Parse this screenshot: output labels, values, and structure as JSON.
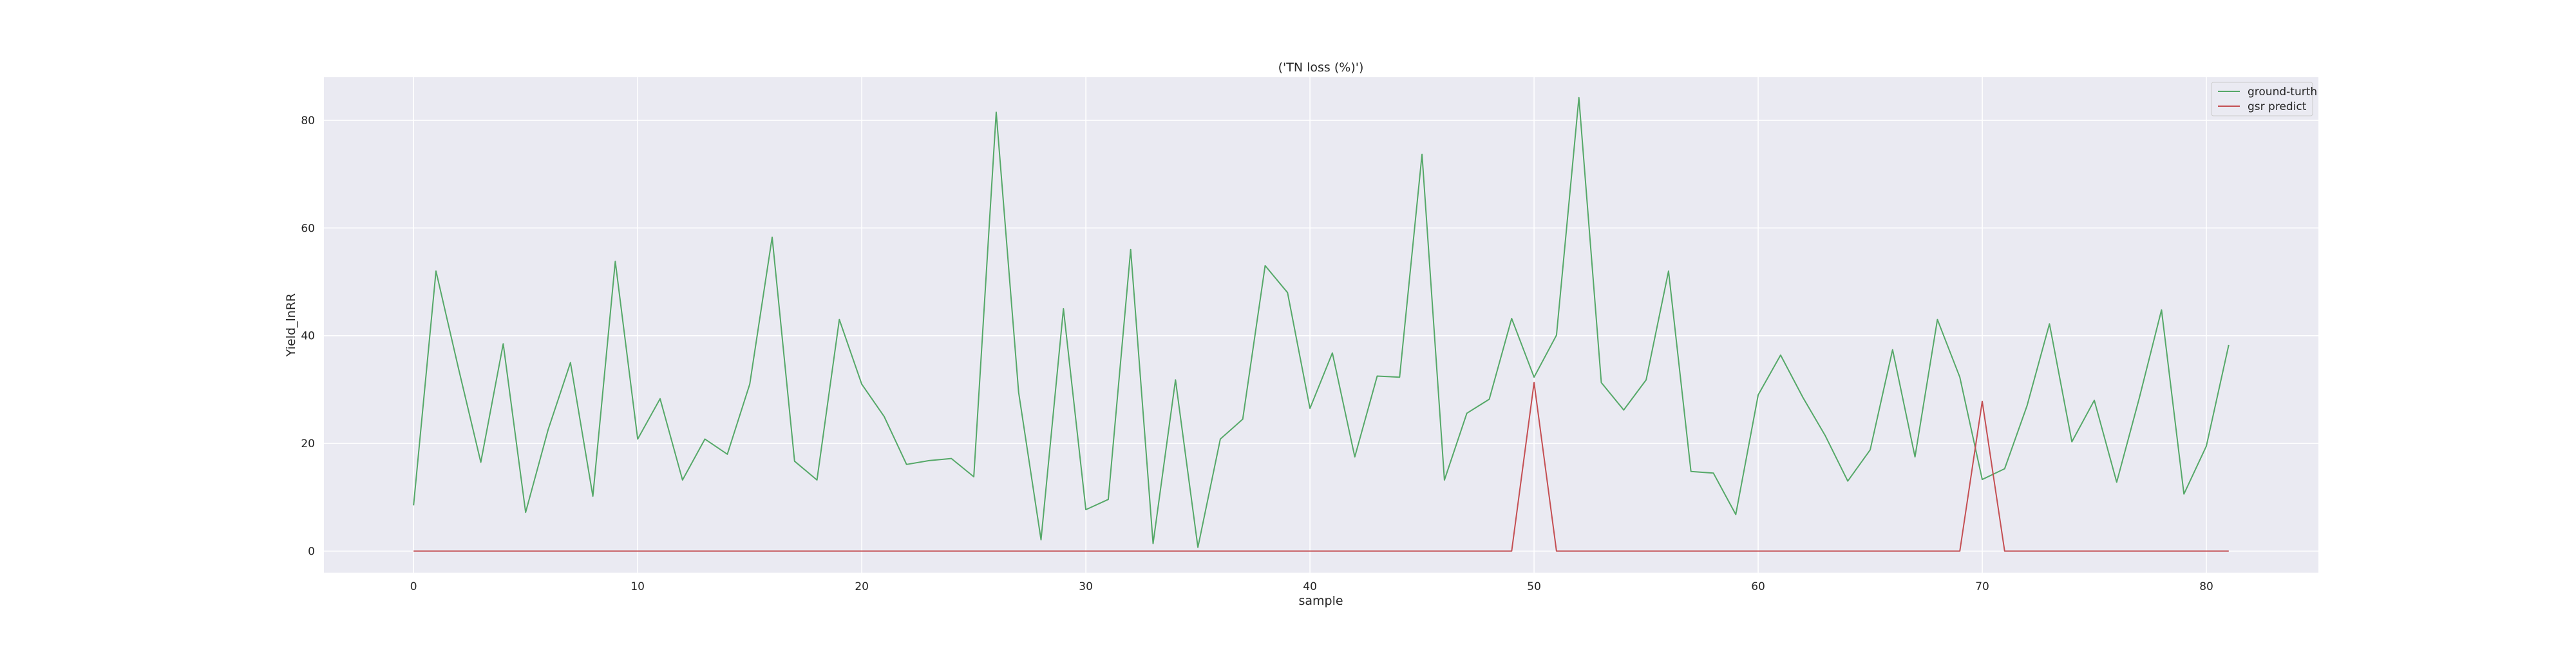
{
  "chart_data": {
    "type": "line",
    "title": "('TN loss (%)')",
    "xlabel": "sample",
    "ylabel": "Yield_lnRR",
    "xlim": [
      -4,
      85
    ],
    "ylim": [
      -4,
      88
    ],
    "xticks": [
      0,
      10,
      20,
      30,
      40,
      50,
      60,
      70,
      80
    ],
    "yticks": [
      0,
      20,
      40,
      60,
      80
    ],
    "xtick_labels": [
      "0",
      "10",
      "20",
      "30",
      "40",
      "50",
      "60",
      "70",
      "80"
    ],
    "ytick_labels": [
      "0",
      "20",
      "40",
      "60",
      "80"
    ],
    "grid": true,
    "legend_position": "top-right",
    "series": [
      {
        "name": "ground-turth",
        "color": "#55a868",
        "values": [
          8.5,
          52,
          34,
          16.5,
          38.5,
          7.2,
          22.5,
          35,
          10.2,
          53.8,
          20.8,
          28.3,
          13.2,
          20.8,
          18,
          31,
          58.3,
          16.7,
          13.2,
          43,
          31,
          25,
          16.1,
          16.8,
          17.2,
          13.8,
          81.5,
          29.5,
          2.1,
          45,
          7.7,
          9.6,
          56,
          1.4,
          31.8,
          0.7,
          20.8,
          24.5,
          53,
          48,
          26.5,
          36.8,
          17.5,
          32.5,
          32.3,
          73.7,
          13.2,
          25.6,
          28.2,
          43.2,
          32.3,
          40.1,
          84.2,
          31.3,
          26.2,
          31.8,
          52,
          14.8,
          14.5,
          6.8,
          29,
          36.4,
          28.5,
          21.4,
          13,
          18.8,
          37.4,
          17.5,
          43,
          32.3,
          13.3,
          15.3,
          27,
          42.2,
          20.3,
          28,
          12.8,
          28.3,
          44.8,
          10.6,
          19.5,
          38.3
        ]
      },
      {
        "name": "gsr predict",
        "color": "#c44e52",
        "values": [
          0,
          0,
          0,
          0,
          0,
          0,
          0,
          0,
          0,
          0,
          0,
          0,
          0,
          0,
          0,
          0,
          0,
          0,
          0,
          0,
          0,
          0,
          0,
          0,
          0,
          0,
          0,
          0,
          0,
          0,
          0,
          0,
          0,
          0,
          0,
          0,
          0,
          0,
          0,
          0,
          0,
          0,
          0,
          0,
          0,
          0,
          0,
          0,
          0,
          0,
          31.3,
          0,
          0,
          0,
          0,
          0,
          0,
          0,
          0,
          0,
          0,
          0,
          0,
          0,
          0,
          0,
          0,
          0,
          0,
          0,
          27.8,
          0,
          0,
          0,
          0,
          0,
          0,
          0,
          0,
          0,
          0,
          0
        ]
      }
    ]
  }
}
